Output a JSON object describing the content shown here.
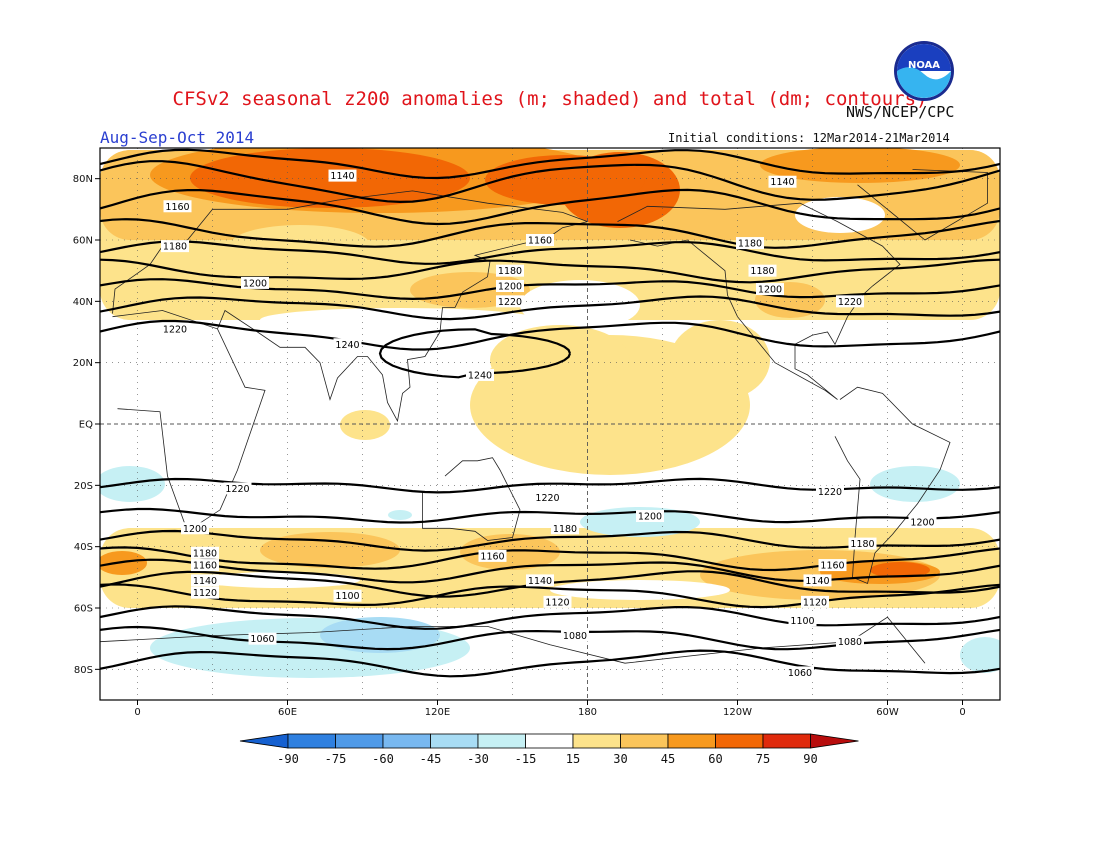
{
  "header": {
    "title": "CFSv2 seasonal z200 anomalies (m; shaded) and total (dm; contours)",
    "period": "Aug-Sep-Oct 2014",
    "initial_conditions": "Initial conditions: 12Mar2014-21Mar2014",
    "agency": "NWS/NCEP/CPC",
    "logo_text": "NOAA"
  },
  "map": {
    "lat_ticks": [
      "80N",
      "60N",
      "40N",
      "20N",
      "EQ",
      "20S",
      "40S",
      "60S",
      "80S"
    ],
    "lon_ticks": [
      "0",
      "60E",
      "120E",
      "180",
      "120W",
      "60W",
      "0"
    ],
    "colors": {
      "neg90": "#1560d0",
      "neg75": "#2f80e0",
      "neg60": "#4f9ae8",
      "neg45": "#78b8f0",
      "neg30": "#a8dcf4",
      "neg15": "#c6f0f4",
      "neutral": "#ffffff",
      "pos15": "#fde38b",
      "pos30": "#fbc55b",
      "pos45": "#f7991e",
      "pos60": "#f26705",
      "pos75": "#e02a0c",
      "pos90": "#b80d0d"
    },
    "contour_labels": [
      {
        "text": "1140",
        "lon": 82,
        "lat": 81
      },
      {
        "text": "1140",
        "lon": -102,
        "lat": 79
      },
      {
        "text": "1160",
        "lon": 16,
        "lat": 71
      },
      {
        "text": "1160",
        "lon": 161,
        "lat": 60
      },
      {
        "text": "1180",
        "lon": 15,
        "lat": 58
      },
      {
        "text": "1180",
        "lon": -115,
        "lat": 59
      },
      {
        "text": "1180",
        "lon": 149,
        "lat": 50
      },
      {
        "text": "1180",
        "lon": -110,
        "lat": 50
      },
      {
        "text": "1200",
        "lon": 47,
        "lat": 46
      },
      {
        "text": "1200",
        "lon": 149,
        "lat": 45
      },
      {
        "text": "1200",
        "lon": -107,
        "lat": 44
      },
      {
        "text": "1220",
        "lon": 149,
        "lat": 40
      },
      {
        "text": "1220",
        "lon": -75,
        "lat": 40
      },
      {
        "text": "1220",
        "lon": 15,
        "lat": 31
      },
      {
        "text": "1240",
        "lon": 84,
        "lat": 26
      },
      {
        "text": "1240",
        "lon": 137,
        "lat": 16
      },
      {
        "text": "1220",
        "lon": 40,
        "lat": -21
      },
      {
        "text": "1220",
        "lon": 164,
        "lat": -24
      },
      {
        "text": "1220",
        "lon": -83,
        "lat": -22
      },
      {
        "text": "1200",
        "lon": 23,
        "lat": -34
      },
      {
        "text": "1200",
        "lon": -155,
        "lat": -30
      },
      {
        "text": "1200",
        "lon": -46,
        "lat": -32
      },
      {
        "text": "1180",
        "lon": 27,
        "lat": -42
      },
      {
        "text": "1180",
        "lon": 171,
        "lat": -34
      },
      {
        "text": "1180",
        "lon": -70,
        "lat": -39
      },
      {
        "text": "1160",
        "lon": 27,
        "lat": -46
      },
      {
        "text": "1160",
        "lon": 142,
        "lat": -43
      },
      {
        "text": "1160",
        "lon": -82,
        "lat": -46
      },
      {
        "text": "1140",
        "lon": 27,
        "lat": -51
      },
      {
        "text": "1140",
        "lon": 161,
        "lat": -51
      },
      {
        "text": "1140",
        "lon": -88,
        "lat": -51
      },
      {
        "text": "1120",
        "lon": 27,
        "lat": -55
      },
      {
        "text": "1120",
        "lon": 168,
        "lat": -58
      },
      {
        "text": "1120",
        "lon": -89,
        "lat": -58
      },
      {
        "text": "1100",
        "lon": 84,
        "lat": -56
      },
      {
        "text": "1100",
        "lon": -94,
        "lat": -64
      },
      {
        "text": "1080",
        "lon": 175,
        "lat": -69
      },
      {
        "text": "1080",
        "lon": -75,
        "lat": -71
      },
      {
        "text": "1060",
        "lon": 50,
        "lat": -70
      },
      {
        "text": "1060",
        "lon": -95,
        "lat": -81
      }
    ]
  },
  "colorbar": {
    "labels": [
      "-90",
      "-75",
      "-60",
      "-45",
      "-30",
      "-15",
      "15",
      "30",
      "45",
      "60",
      "75",
      "90"
    ]
  }
}
